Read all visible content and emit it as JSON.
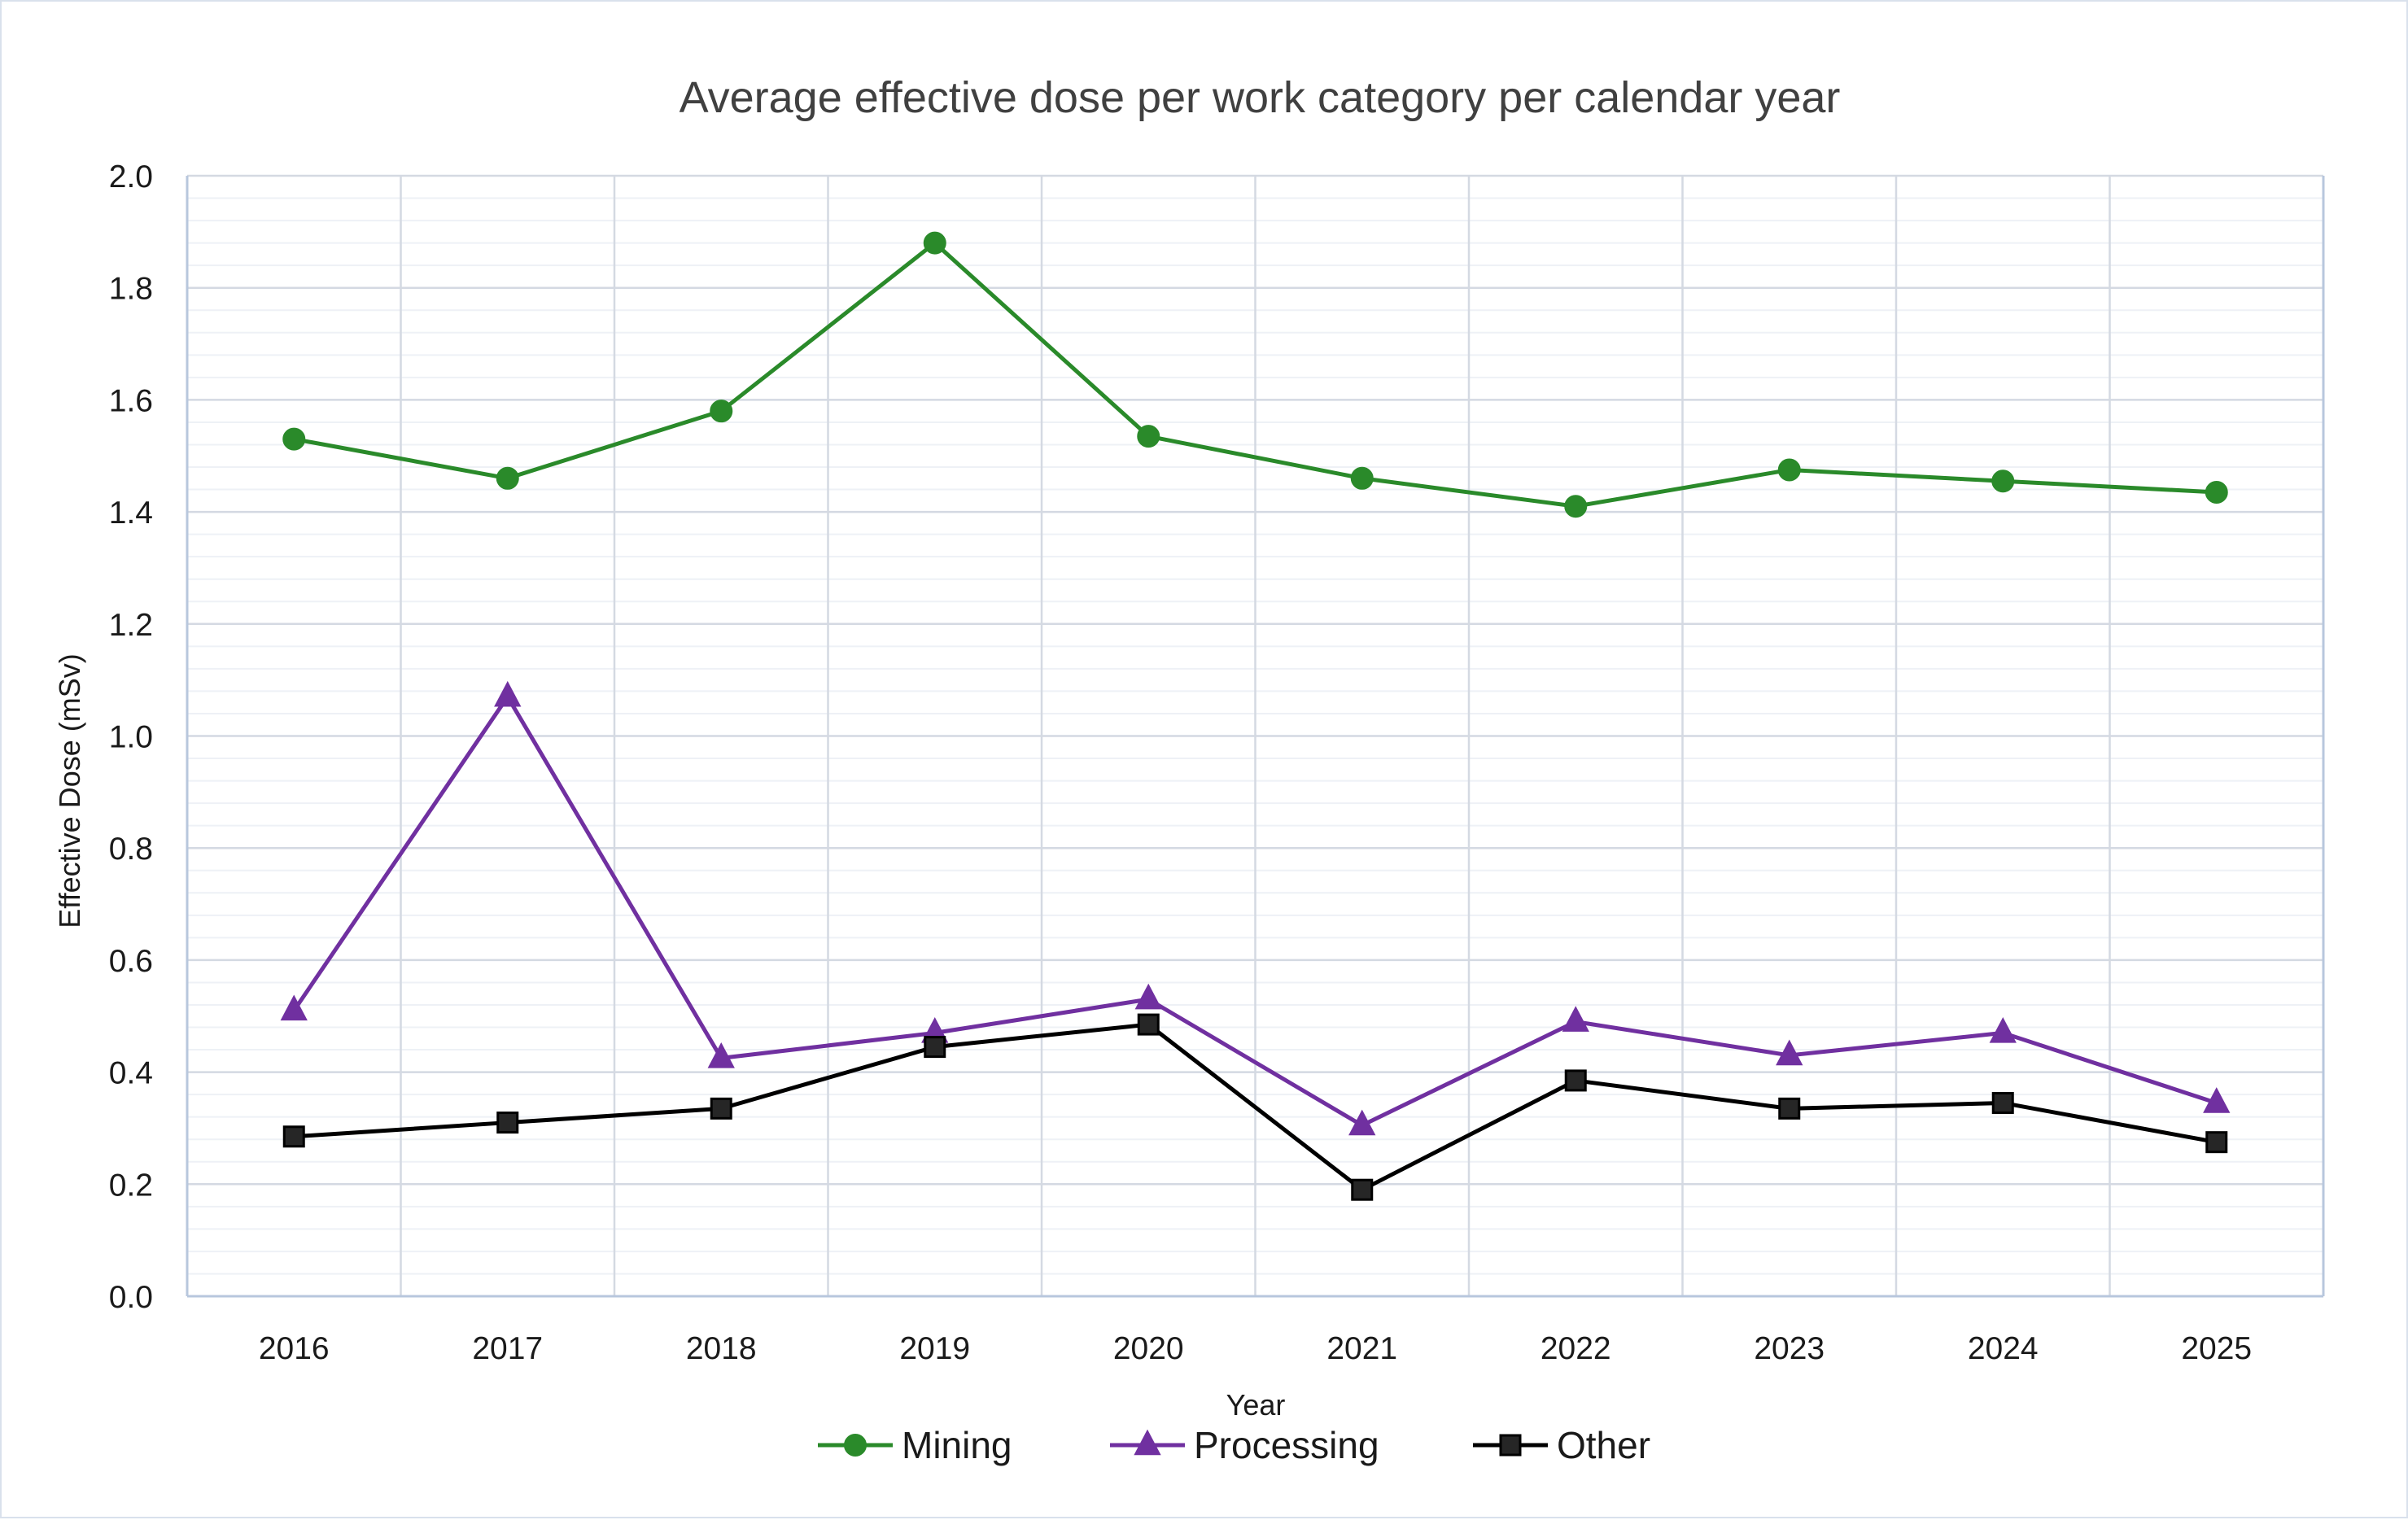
{
  "chart_data": {
    "type": "line",
    "title": "Average effective dose per work category per calendar year",
    "xlabel": "Year",
    "ylabel": "Effective Dose (mSv)",
    "ylim": [
      0,
      2.0
    ],
    "y_ticks": [
      "0.0",
      "0.2",
      "0.4",
      "0.6",
      "0.8",
      "1.0",
      "1.2",
      "1.4",
      "1.6",
      "1.8",
      "2.0"
    ],
    "categories": [
      "2016",
      "2017",
      "2018",
      "2019",
      "2020",
      "2021",
      "2022",
      "2023",
      "2024",
      "2025"
    ],
    "grid": true,
    "legend_position": "bottom",
    "series": [
      {
        "name": "Mining",
        "color": "#2a8a2a",
        "marker": "circle",
        "values": [
          1.53,
          1.46,
          1.58,
          1.88,
          1.535,
          1.46,
          1.41,
          1.475,
          1.455,
          1.435
        ]
      },
      {
        "name": "Processing",
        "color": "#7030a0",
        "marker": "triangle",
        "values": [
          0.51,
          1.07,
          0.425,
          0.47,
          0.53,
          0.305,
          0.49,
          0.43,
          0.47,
          0.345
        ]
      },
      {
        "name": "Other",
        "color": "#000000",
        "marker": "square",
        "values": [
          0.285,
          0.31,
          0.335,
          0.445,
          0.485,
          0.19,
          0.385,
          0.335,
          0.345,
          0.275
        ]
      }
    ]
  }
}
